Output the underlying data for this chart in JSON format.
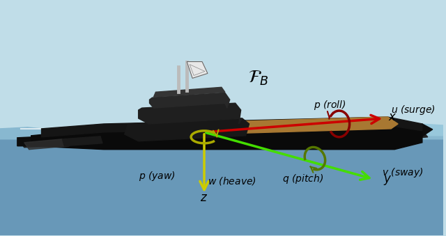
{
  "bg_color": "#c0dde8",
  "sky_color": "#c0dde8",
  "water_deep": "#4878a0",
  "water_mid": "#6898b8",
  "water_light": "#88b8d0",
  "hull_black": "#0a0a0a",
  "hull_dark": "#1a1a1a",
  "hull_gray": "#2a2a2a",
  "deck_tan": "#a87832",
  "super_dark": "#222222",
  "mast_color": "#cccccc",
  "sail_color": "#e0e0e0",
  "axis_red": "#cc0000",
  "axis_yellow": "#cccc00",
  "axis_green": "#44dd00",
  "axis_olive": "#557700",
  "roll_red": "#880000",
  "yaw_gold": "#aaaa00",
  "figsize": [
    6.4,
    3.39
  ],
  "dpi": 100
}
